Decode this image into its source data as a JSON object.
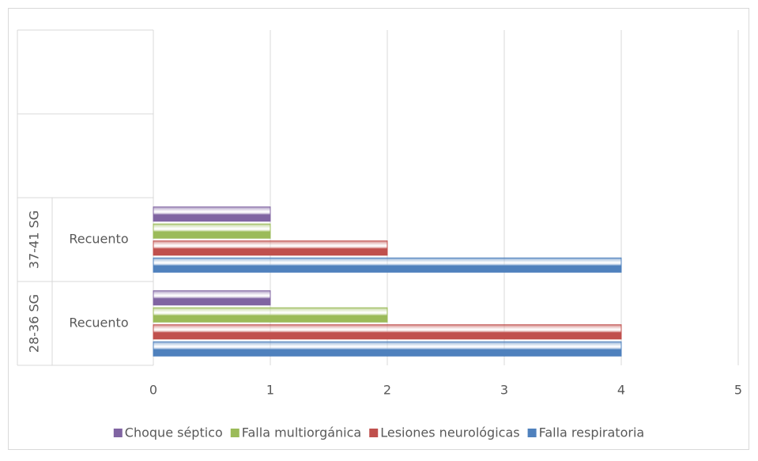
{
  "chart_data": {
    "type": "bar",
    "orientation": "horizontal",
    "categories": [
      "Recuento",
      "Recuento",
      null,
      null
    ],
    "group_labels": [
      "28-36 SG",
      "37-41 SG",
      null,
      null
    ],
    "series": [
      {
        "name": "Falla respiratoria",
        "color": "#4f81bd",
        "values": [
          4,
          4,
          null,
          null
        ]
      },
      {
        "name": "Lesiones neurológicas",
        "color": "#c0504d",
        "values": [
          4,
          2,
          null,
          null
        ]
      },
      {
        "name": "Falla multiorgánica",
        "color": "#9bbb59",
        "values": [
          2,
          1,
          null,
          null
        ]
      },
      {
        "name": "Choque séptico",
        "color": "#8064a2",
        "values": [
          1,
          1,
          null,
          null
        ]
      }
    ],
    "xlim": [
      0,
      5
    ],
    "xticks": [
      0,
      1,
      2,
      3,
      4,
      5
    ],
    "grid": true,
    "legend": "bottom"
  }
}
